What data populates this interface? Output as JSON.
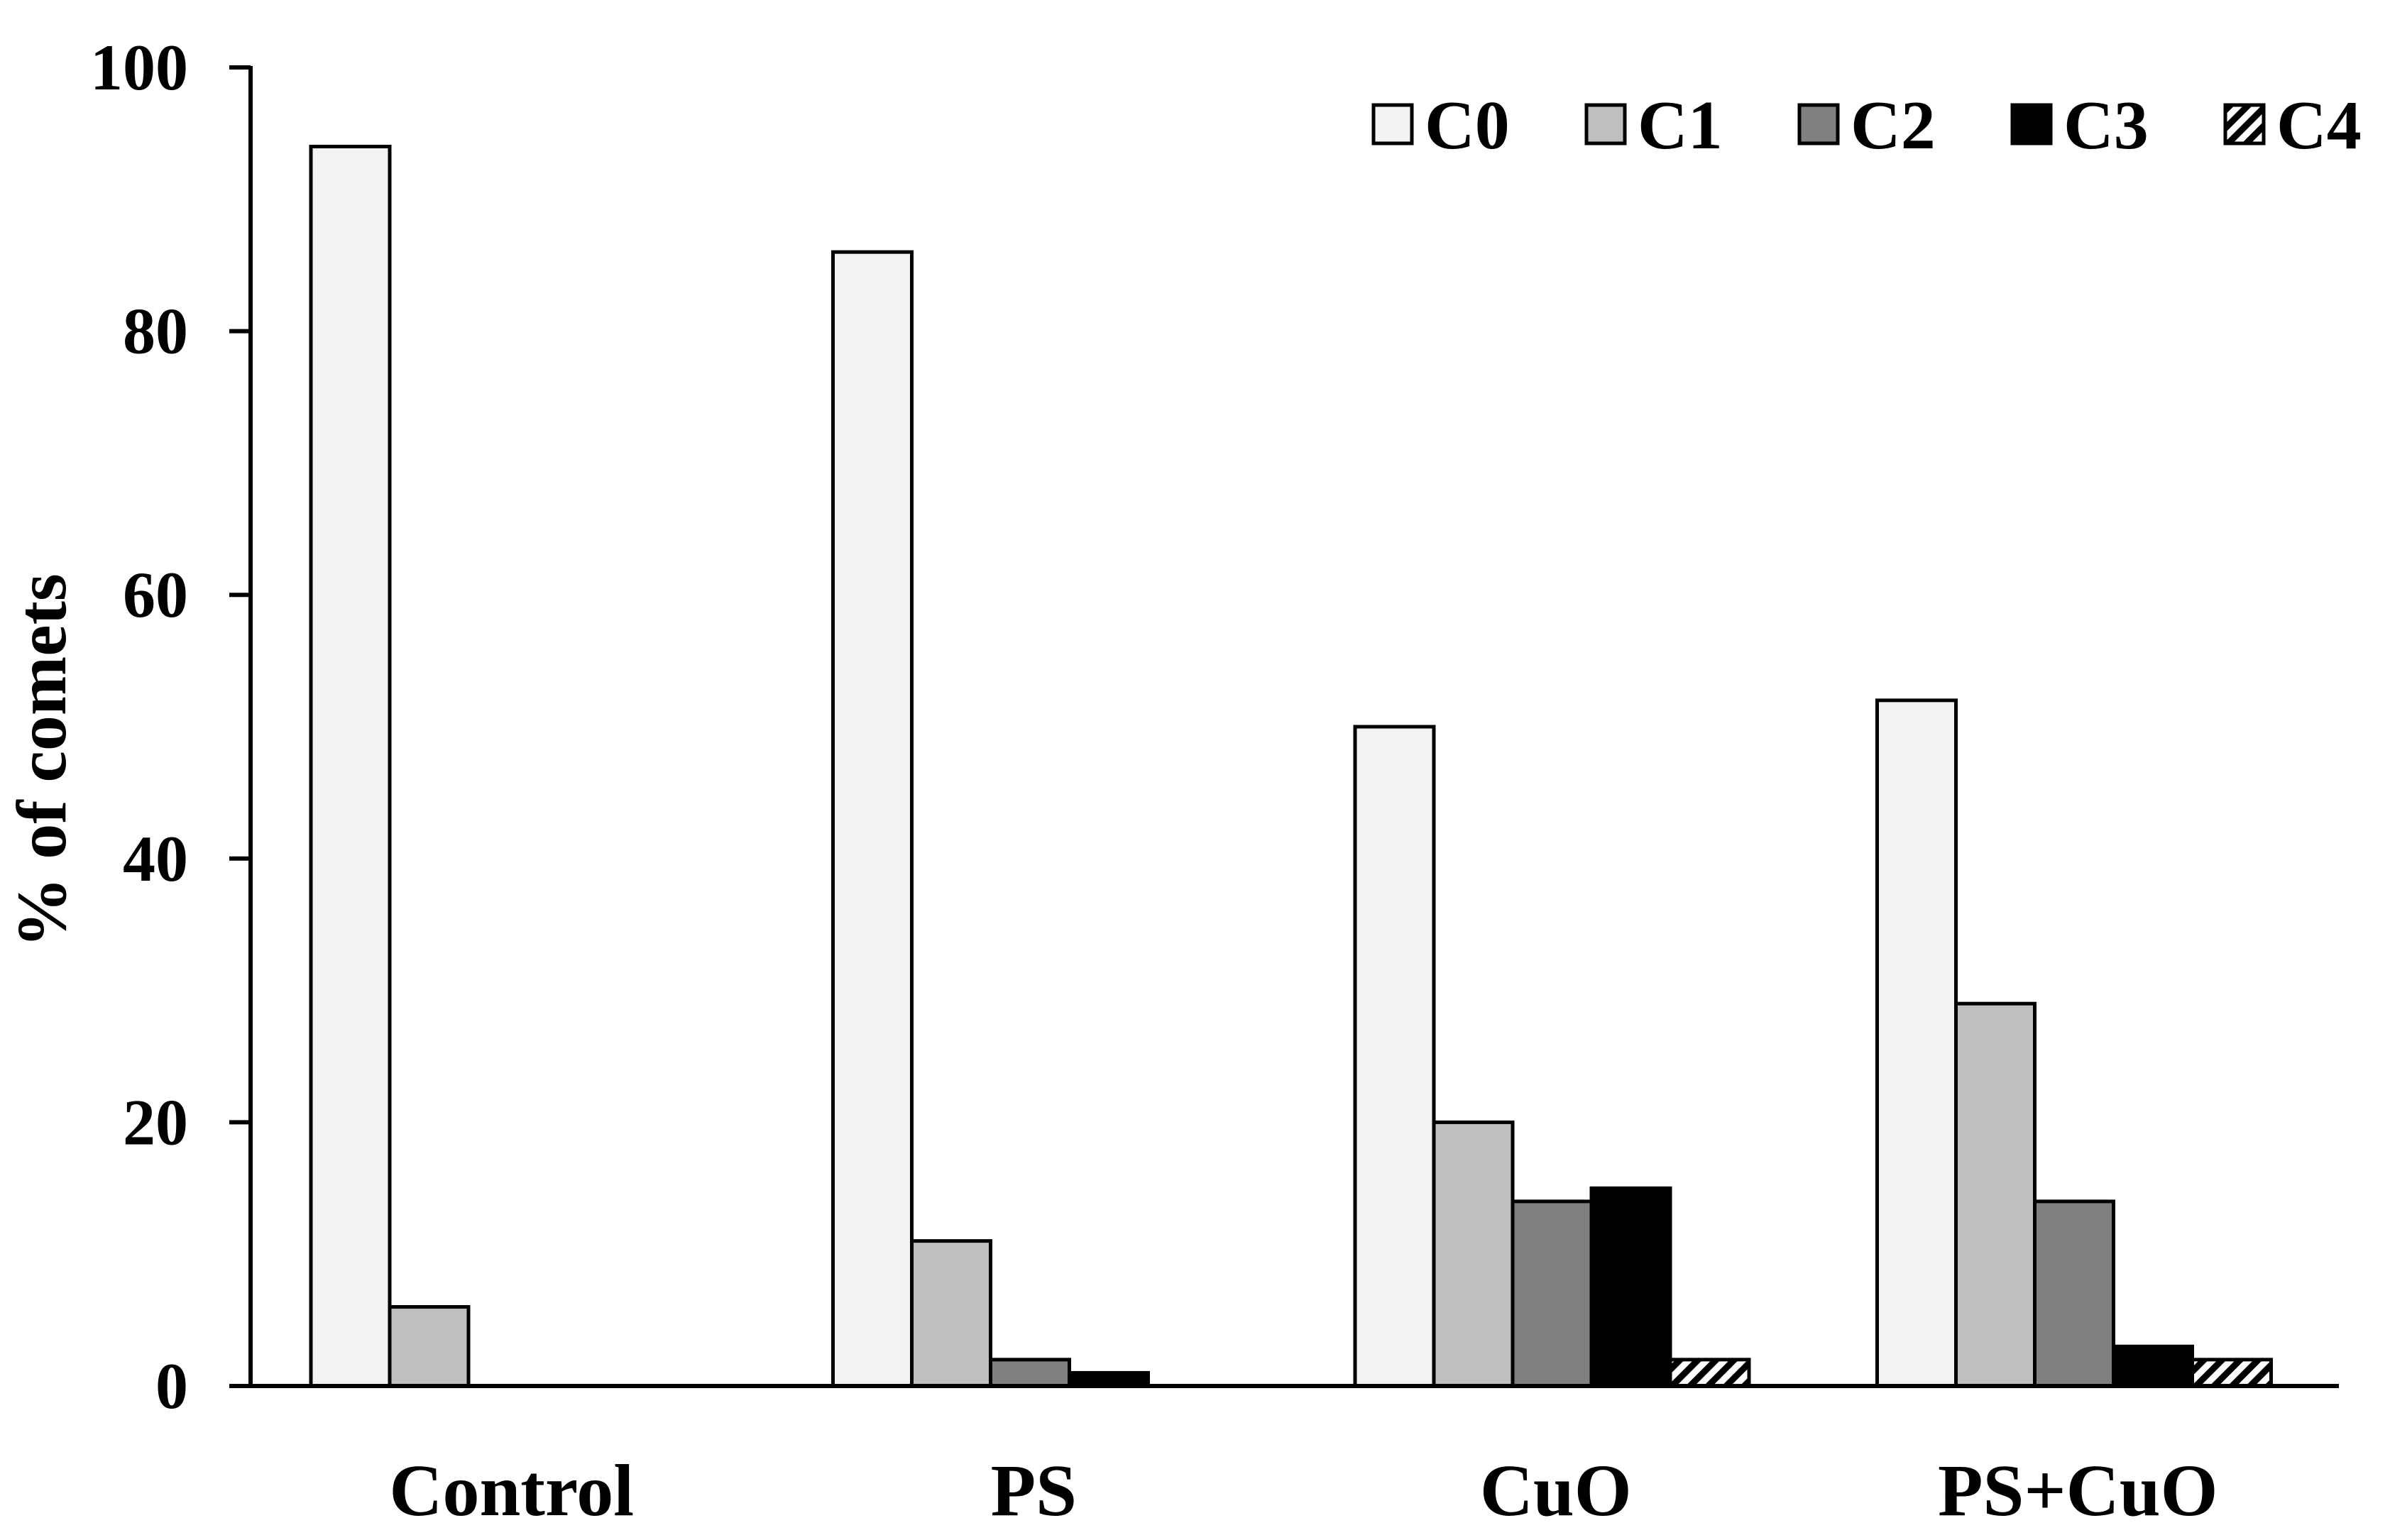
{
  "chart_data": {
    "type": "bar",
    "title": "",
    "xlabel": "",
    "ylabel": "% of comets",
    "ylim": [
      0,
      100
    ],
    "yticks": [
      "0",
      "20",
      "40",
      "60",
      "80",
      "100"
    ],
    "grid": false,
    "legend_position": "top-right",
    "categories": [
      "Control",
      "PS",
      "CuO",
      "PS+CuO"
    ],
    "series": [
      {
        "name": "C0",
        "color": "#f2f2f2",
        "pattern": "solid",
        "values": [
          94,
          86,
          50,
          52
        ]
      },
      {
        "name": "C1",
        "color": "#bfbfbf",
        "pattern": "solid",
        "values": [
          6,
          11,
          20,
          29
        ]
      },
      {
        "name": "C2",
        "color": "#808080",
        "pattern": "solid",
        "values": [
          0,
          2,
          14,
          14
        ]
      },
      {
        "name": "C3",
        "color": "#000000",
        "pattern": "solid",
        "values": [
          0,
          1,
          15,
          3
        ]
      },
      {
        "name": "C4",
        "color": "#ffffff",
        "pattern": "diagonal-hatch",
        "values": [
          0,
          0,
          2,
          2
        ]
      }
    ]
  }
}
